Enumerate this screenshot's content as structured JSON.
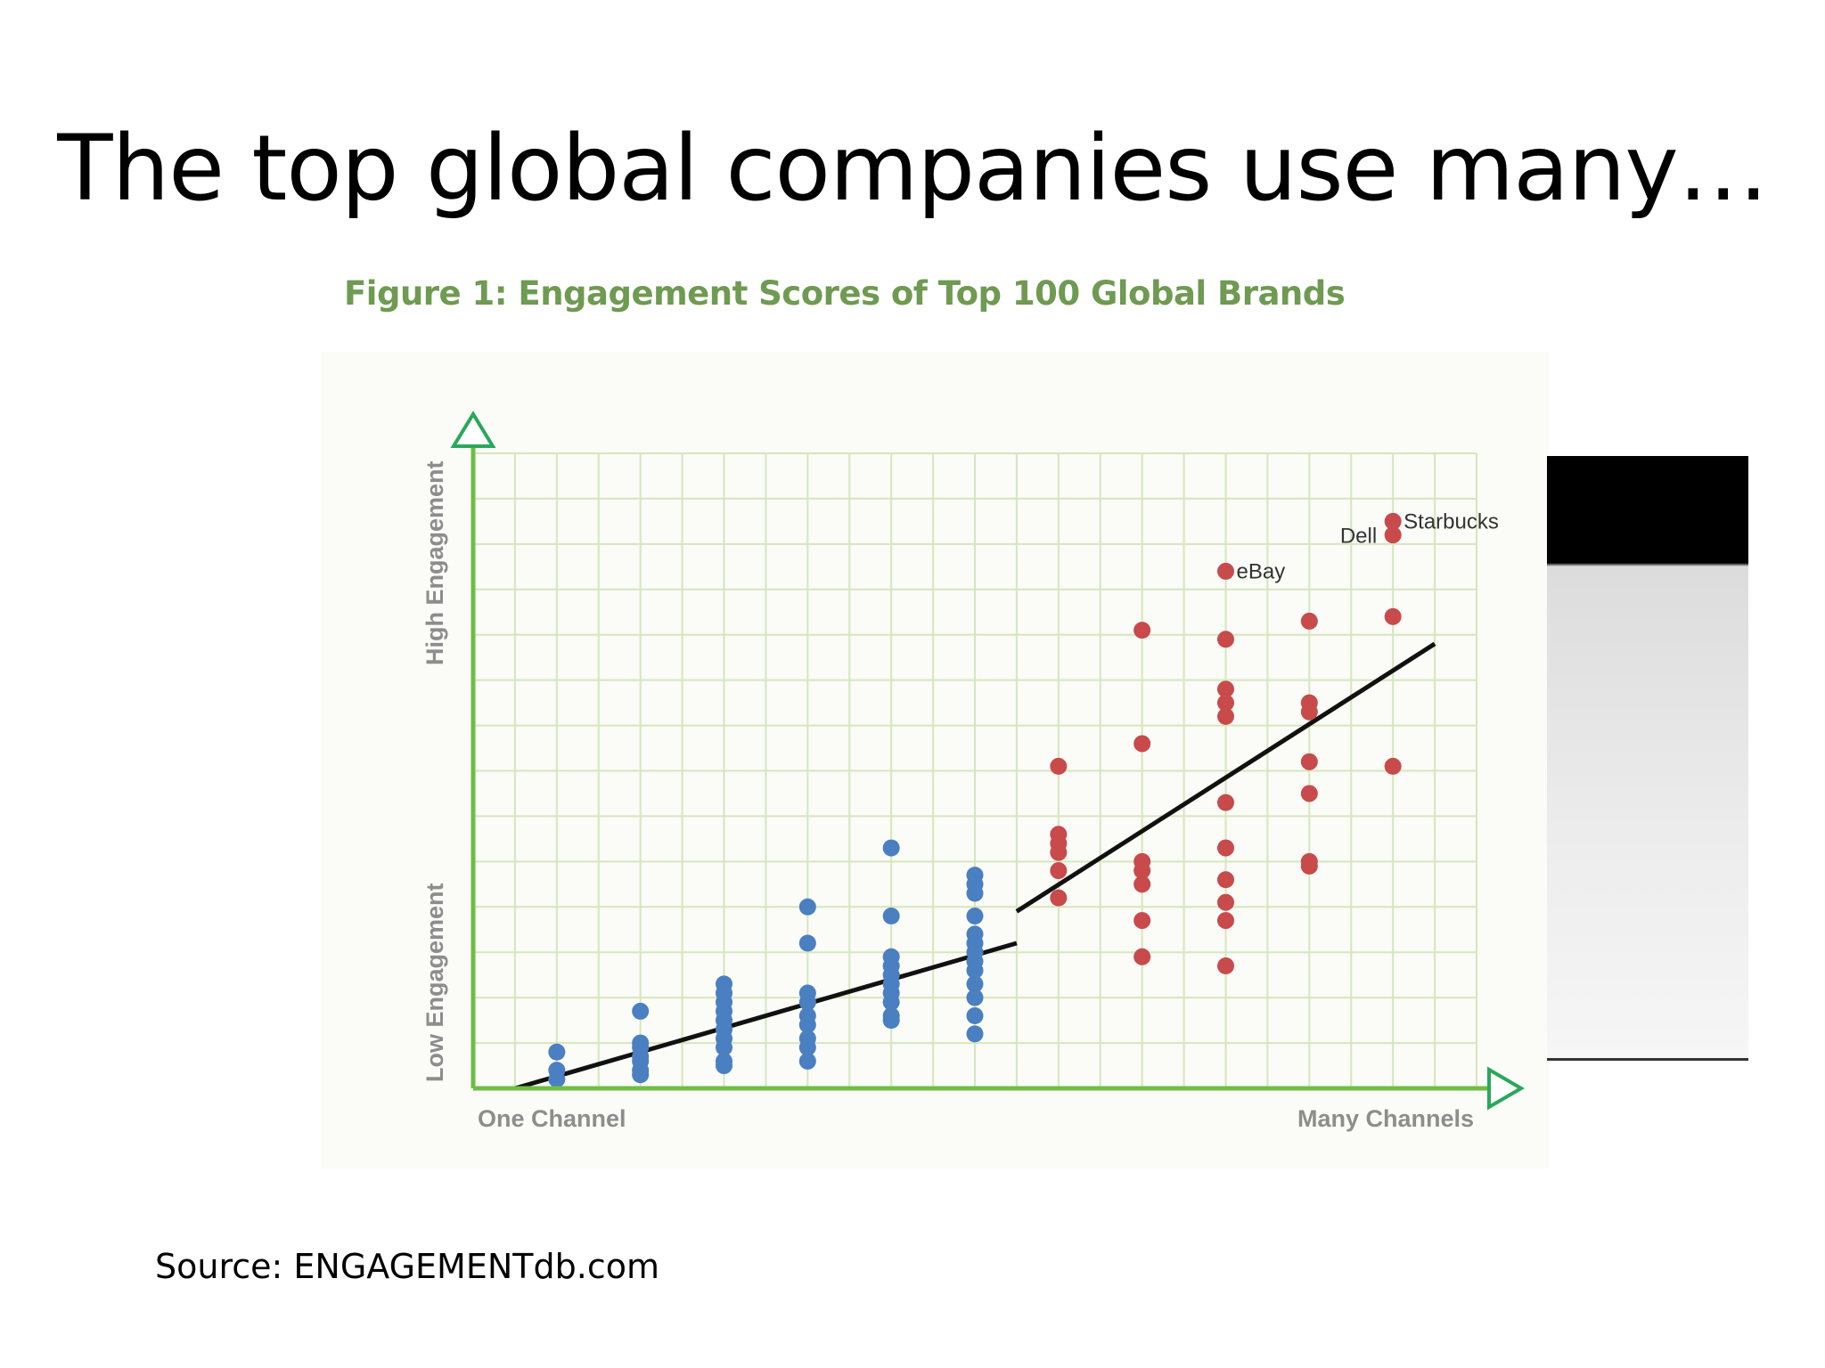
{
  "slide": {
    "title": "The top global companies use many…",
    "source": "Source: ENGAGEMENTdb.com"
  },
  "chart_data": {
    "type": "scatter",
    "title": "Figure 1: Engagement Scores of Top 100 Global Brands",
    "xlabel_low": "One Channel",
    "xlabel_high": "Many Channels",
    "ylabel_low": "Low Engagement",
    "ylabel_high": "High Engagement",
    "xlim": [
      0,
      24
    ],
    "ylim": [
      0,
      14
    ],
    "grid": true,
    "series": [
      {
        "group": "low",
        "color": "#4a7fc1",
        "points": [
          [
            2,
            0.8
          ],
          [
            2,
            0.4
          ],
          [
            2,
            0.2
          ],
          [
            4,
            1.7
          ],
          [
            4,
            1.0
          ],
          [
            4,
            0.9
          ],
          [
            4,
            0.7
          ],
          [
            4,
            0.6
          ],
          [
            4,
            0.4
          ],
          [
            4,
            0.3
          ],
          [
            6,
            2.3
          ],
          [
            6,
            2.1
          ],
          [
            6,
            1.9
          ],
          [
            6,
            1.7
          ],
          [
            6,
            1.5
          ],
          [
            6,
            1.3
          ],
          [
            6,
            1.1
          ],
          [
            6,
            0.9
          ],
          [
            6,
            0.6
          ],
          [
            6,
            0.5
          ],
          [
            8,
            4.0
          ],
          [
            8,
            3.2
          ],
          [
            8,
            2.1
          ],
          [
            8,
            1.9
          ],
          [
            8,
            1.6
          ],
          [
            8,
            1.4
          ],
          [
            8,
            1.1
          ],
          [
            8,
            0.9
          ],
          [
            8,
            0.6
          ],
          [
            10,
            5.3
          ],
          [
            10,
            3.8
          ],
          [
            10,
            2.9
          ],
          [
            10,
            2.7
          ],
          [
            10,
            2.5
          ],
          [
            10,
            2.3
          ],
          [
            10,
            2.1
          ],
          [
            10,
            1.9
          ],
          [
            10,
            1.6
          ],
          [
            10,
            1.5
          ],
          [
            12,
            4.7
          ],
          [
            12,
            4.5
          ],
          [
            12,
            4.3
          ],
          [
            12,
            3.8
          ],
          [
            12,
            3.4
          ],
          [
            12,
            3.2
          ],
          [
            12,
            3.0
          ],
          [
            12,
            2.8
          ],
          [
            12,
            2.6
          ],
          [
            12,
            2.3
          ],
          [
            12,
            2.0
          ],
          [
            12,
            1.6
          ],
          [
            12,
            1.2
          ]
        ]
      },
      {
        "group": "high",
        "color": "#c84a4a",
        "points": [
          [
            14,
            7.1
          ],
          [
            14,
            5.6
          ],
          [
            14,
            5.4
          ],
          [
            14,
            5.2
          ],
          [
            14,
            4.8
          ],
          [
            14,
            4.2
          ],
          [
            16,
            10.1
          ],
          [
            16,
            7.6
          ],
          [
            16,
            5.0
          ],
          [
            16,
            4.8
          ],
          [
            16,
            4.5
          ],
          [
            16,
            3.7
          ],
          [
            16,
            2.9
          ],
          [
            18,
            11.4
          ],
          [
            18,
            9.9
          ],
          [
            18,
            8.8
          ],
          [
            18,
            8.5
          ],
          [
            18,
            8.2
          ],
          [
            18,
            6.3
          ],
          [
            18,
            5.3
          ],
          [
            18,
            4.6
          ],
          [
            18,
            4.1
          ],
          [
            18,
            3.7
          ],
          [
            18,
            2.7
          ],
          [
            20,
            10.3
          ],
          [
            20,
            8.5
          ],
          [
            20,
            8.3
          ],
          [
            20,
            7.2
          ],
          [
            20,
            6.5
          ],
          [
            20,
            5.0
          ],
          [
            20,
            4.9
          ],
          [
            22,
            12.5
          ],
          [
            22,
            12.2
          ],
          [
            22,
            10.4
          ],
          [
            22,
            7.1
          ]
        ]
      }
    ],
    "labels": [
      {
        "text": "Starbucks",
        "x": 22,
        "y": 12.5
      },
      {
        "text": "Dell",
        "x": 22,
        "y": 12.2
      },
      {
        "text": "eBay",
        "x": 18,
        "y": 11.4
      }
    ],
    "trendlines": [
      {
        "x": [
          1,
          13
        ],
        "y": [
          0,
          3.2
        ]
      },
      {
        "x": [
          13,
          23
        ],
        "y": [
          3.9,
          9.8
        ]
      }
    ],
    "colors": {
      "axis": "#6ebe44",
      "arrow": "#2aa85a",
      "grid": "#d6e6bc",
      "trend": "#111111"
    }
  }
}
